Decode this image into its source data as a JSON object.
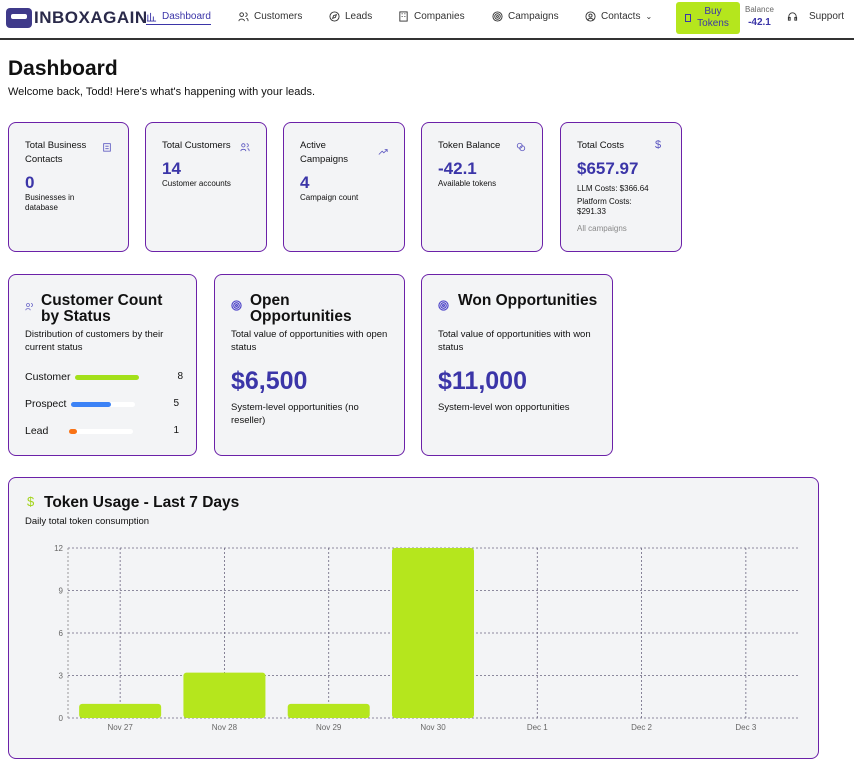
{
  "nav": {
    "logo": "INBOXAGAIN",
    "items": [
      {
        "label": "Dashboard",
        "icon": "bar-chart-icon"
      },
      {
        "label": "Customers",
        "icon": "users-icon"
      },
      {
        "label": "Leads",
        "icon": "compass-icon"
      },
      {
        "label": "Companies",
        "icon": "building-icon"
      },
      {
        "label": "Campaigns",
        "icon": "target-icon"
      },
      {
        "label": "Contacts",
        "icon": "user-circle-icon"
      }
    ],
    "buy_tokens": "Buy Tokens",
    "balance_label": "Balance",
    "balance_value": "-42.1",
    "support": "Support"
  },
  "page": {
    "title": "Dashboard",
    "welcome": "Welcome back, Todd! Here's what's happening with your leads."
  },
  "stats": [
    {
      "title": "Total Business Contacts",
      "value": "0",
      "sub": "Businesses in database",
      "icon": "building-icon"
    },
    {
      "title": "Total Customers",
      "value": "14",
      "sub": "Customer accounts",
      "icon": "users-icon"
    },
    {
      "title": "Active Campaigns",
      "value": "4",
      "sub": "Campaign count",
      "icon": "trending-up-icon"
    },
    {
      "title": "Token Balance",
      "value": "-42.1",
      "sub": "Available tokens",
      "icon": "coins-icon"
    },
    {
      "title": "Total Costs",
      "value": "$657.97",
      "llm": "LLM Costs: $366.64",
      "platform": "Platform Costs: $291.33",
      "note": "All campaigns",
      "icon": "dollar-icon"
    }
  ],
  "customer_status": {
    "title": "Customer Count by Status",
    "desc": "Distribution of customers by their current status",
    "rows": [
      {
        "label": "Customer",
        "count": "8",
        "fraction": 1.0,
        "color": "#a3e01a"
      },
      {
        "label": "Prospect",
        "count": "5",
        "fraction": 0.625,
        "color": "#3b82f6"
      },
      {
        "label": "Lead",
        "count": "1",
        "fraction": 0.125,
        "color": "#f97316"
      }
    ]
  },
  "open_opps": {
    "title": "Open Opportunities",
    "desc": "Total value of opportunities with open status",
    "value": "$6,500",
    "foot": "System-level opportunities (no reseller)"
  },
  "won_opps": {
    "title": "Won Opportunities",
    "desc": "Total value of opportunities with won status",
    "value": "$11,000",
    "foot": "System-level won opportunities"
  },
  "token_usage": {
    "title": "Token Usage - Last 7 Days",
    "subtitle": "Daily total token consumption"
  },
  "chart_data": {
    "type": "bar",
    "categories": [
      "Nov 27",
      "Nov 28",
      "Nov 29",
      "Nov 30",
      "Dec 1",
      "Dec 2",
      "Dec 3"
    ],
    "values": [
      1,
      3.2,
      1,
      12,
      0,
      0,
      0
    ],
    "ylim": [
      0,
      12
    ],
    "yticks": [
      "0",
      "3",
      "6",
      "9",
      "12"
    ],
    "grid": true,
    "color": "#b5e61d"
  }
}
